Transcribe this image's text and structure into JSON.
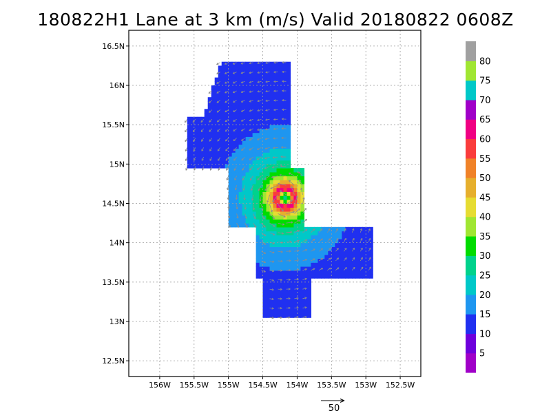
{
  "title": "180822H1 Lane at 3 km (m/s) Valid 20180822 0608Z",
  "map": {
    "lon_range": [
      -156.45,
      -152.2
    ],
    "lat_range": [
      12.3,
      16.7
    ],
    "lon_ticks": [
      {
        "value": -156.0,
        "label": "156W"
      },
      {
        "value": -155.5,
        "label": "155.5W"
      },
      {
        "value": -155.0,
        "label": "155W"
      },
      {
        "value": -154.5,
        "label": "154.5W"
      },
      {
        "value": -154.0,
        "label": "154W"
      },
      {
        "value": -153.5,
        "label": "153.5W"
      },
      {
        "value": -153.0,
        "label": "153W"
      },
      {
        "value": -152.5,
        "label": "152.5W"
      }
    ],
    "lat_ticks": [
      {
        "value": 12.5,
        "label": "12.5N"
      },
      {
        "value": 13.0,
        "label": "13N"
      },
      {
        "value": 13.5,
        "label": "13.5N"
      },
      {
        "value": 14.0,
        "label": "14N"
      },
      {
        "value": 14.5,
        "label": "14.5N"
      },
      {
        "value": 15.0,
        "label": "15N"
      },
      {
        "value": 15.5,
        "label": "15.5N"
      },
      {
        "value": 16.0,
        "label": "16N"
      },
      {
        "value": 16.5,
        "label": "16.5N"
      }
    ],
    "grid": true,
    "storm_center": {
      "lon": -154.2,
      "lat": 14.55
    },
    "max_wind": 67
  },
  "colorbar": {
    "levels": [
      {
        "value": 0,
        "color": "#a000c8"
      },
      {
        "value": 5,
        "color": "#a000c8"
      },
      {
        "value": 10,
        "color": "#6e00dc"
      },
      {
        "value": 15,
        "color": "#2030f0"
      },
      {
        "value": 20,
        "color": "#1e96f0"
      },
      {
        "value": 25,
        "color": "#00c8c8"
      },
      {
        "value": 30,
        "color": "#00d28c"
      },
      {
        "value": 35,
        "color": "#00dc00"
      },
      {
        "value": 40,
        "color": "#a0e632"
      },
      {
        "value": 45,
        "color": "#e6dc32"
      },
      {
        "value": 50,
        "color": "#e6af2d"
      },
      {
        "value": 55,
        "color": "#f08228"
      },
      {
        "value": 60,
        "color": "#fa3c3c"
      },
      {
        "value": 65,
        "color": "#f00082"
      },
      {
        "value": 70,
        "color": "#a000c8"
      },
      {
        "value": 75,
        "color": "#00c8c8"
      },
      {
        "value": 80,
        "color": "#a0e632"
      },
      {
        "value": 85,
        "color": "#a0a0a0"
      }
    ],
    "labels": [
      "5",
      "10",
      "15",
      "20",
      "25",
      "30",
      "35",
      "40",
      "45",
      "50",
      "55",
      "60",
      "65",
      "70",
      "75",
      "80"
    ]
  },
  "vector_key": {
    "value": "50"
  }
}
